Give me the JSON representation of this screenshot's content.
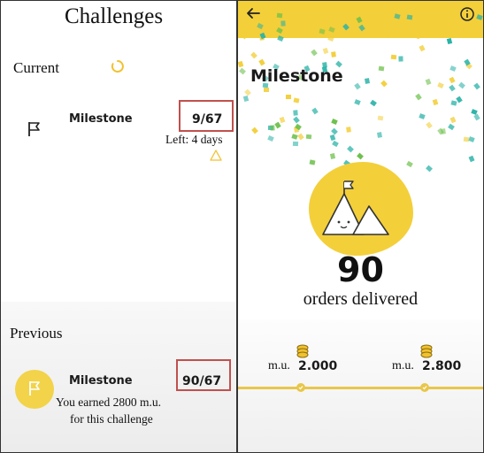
{
  "left": {
    "title": "Challenges",
    "current_heading": "Current",
    "current": {
      "name": "Milestone",
      "progress": "9/67",
      "time_left": "Left: 4 days"
    },
    "previous_heading": "Previous",
    "previous": {
      "name": "Milestone",
      "progress": "90/67",
      "earned_line1": "You earned 2800 m.u.",
      "earned_line2": "for this challenge"
    }
  },
  "right": {
    "title": "Milestone",
    "count": "90",
    "count_label": "orders delivered",
    "rewards": [
      {
        "currency": "m.u.",
        "amount": "2.000"
      },
      {
        "currency": "m.u.",
        "amount": "2.800"
      }
    ]
  },
  "colors": {
    "accent_yellow": "#f3cf3a",
    "highlight_red": "#c0504d",
    "confetti_teal": "#2bb3a8",
    "confetti_green": "#6cc04a"
  },
  "icons": [
    "back-arrow-icon",
    "info-icon",
    "flag-icon",
    "loading-spinner-icon",
    "warning-icon",
    "mountain-flag-icon",
    "coins-icon",
    "check-icon"
  ]
}
